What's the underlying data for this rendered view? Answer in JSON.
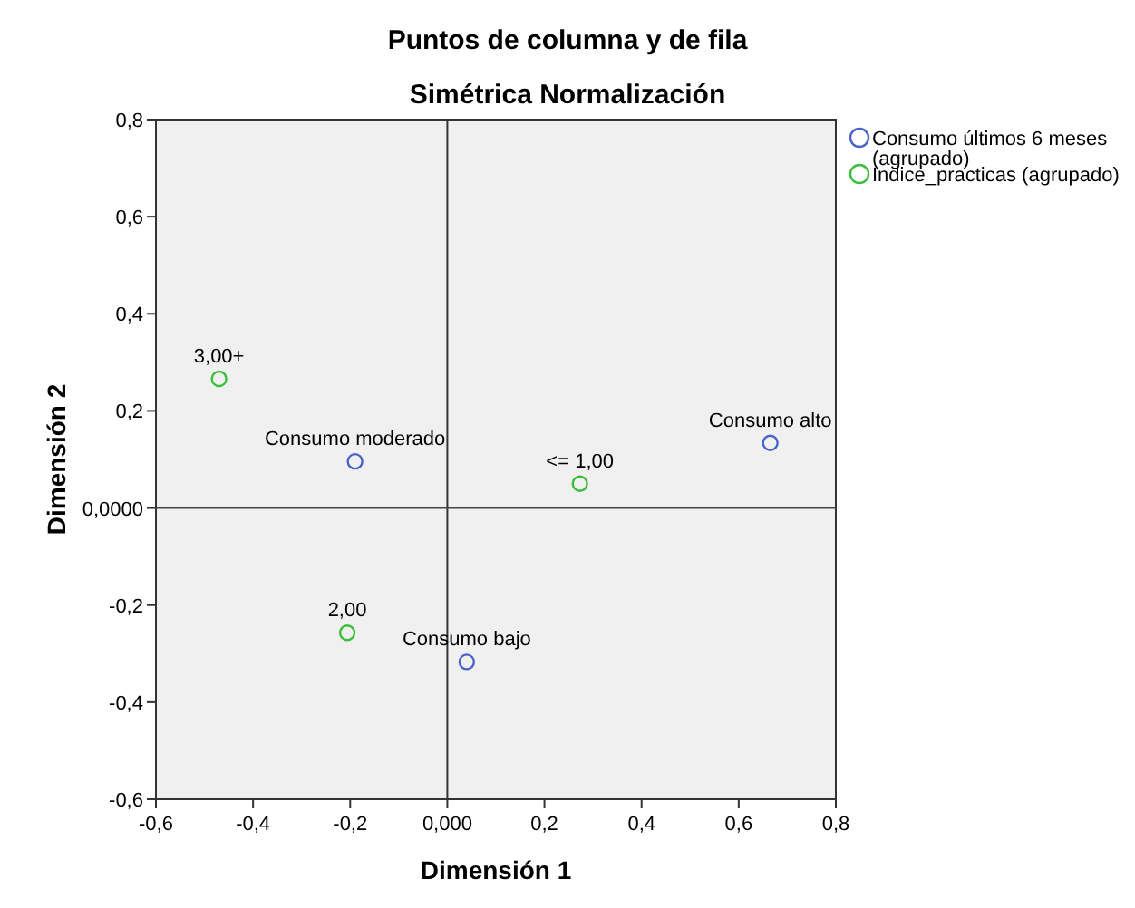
{
  "chart_data": {
    "type": "scatter",
    "title": "Puntos de columna y de fila",
    "subtitle": "Simétrica Normalización",
    "xlabel": "Dimensión 1",
    "ylabel": "Dimensión 2",
    "xlim": [
      -0.6,
      0.8
    ],
    "ylim": [
      -0.6,
      0.8
    ],
    "xticks": [
      {
        "value": -0.6,
        "label": "-0,6"
      },
      {
        "value": -0.4,
        "label": "-0,4"
      },
      {
        "value": -0.2,
        "label": "-0,2"
      },
      {
        "value": 0,
        "label": "0,000"
      },
      {
        "value": 0.2,
        "label": "0,2"
      },
      {
        "value": 0.4,
        "label": "0,4"
      },
      {
        "value": 0.6,
        "label": "0,6"
      },
      {
        "value": 0.8,
        "label": "0,8"
      }
    ],
    "yticks": [
      {
        "value": -0.6,
        "label": "-0,6"
      },
      {
        "value": -0.4,
        "label": "-0,4"
      },
      {
        "value": -0.2,
        "label": "-0,2"
      },
      {
        "value": 0,
        "label": "0,0000"
      },
      {
        "value": 0.2,
        "label": "0,2"
      },
      {
        "value": 0.4,
        "label": "0,4"
      },
      {
        "value": 0.6,
        "label": "0,6"
      },
      {
        "value": 0.8,
        "label": "0,8"
      }
    ],
    "series": [
      {
        "name": "Consumo últimos 6 meses (agrupado)",
        "color": "#4a63c8",
        "x": [
          -0.19,
          0.665,
          0.04
        ],
        "values": [
          0.096,
          0.134,
          -0.317
        ]
      },
      {
        "name": "Indice_practicas (agrupado)",
        "color": "#3cbe3c",
        "x": [
          -0.47,
          0.273,
          -0.206
        ],
        "values": [
          0.266,
          0.05,
          -0.257
        ]
      }
    ],
    "annotations": [
      {
        "text": "Consumo moderado",
        "x": -0.19,
        "y": 0.096
      },
      {
        "text": "Consumo alto",
        "x": 0.665,
        "y": 0.134
      },
      {
        "text": "Consumo bajo",
        "x": 0.04,
        "y": -0.317
      },
      {
        "text": "3,00+",
        "x": -0.47,
        "y": 0.266
      },
      {
        "text": "<= 1,00",
        "x": 0.273,
        "y": 0.05
      },
      {
        "text": "2,00",
        "x": -0.206,
        "y": -0.257
      }
    ],
    "ref_lines": [
      {
        "axis": "x",
        "value": 0,
        "label": null,
        "color": "#333333"
      },
      {
        "axis": "y",
        "value": 0,
        "label": null,
        "color": "#444444"
      }
    ],
    "legend": "right",
    "marker": "circle",
    "grid": false
  }
}
